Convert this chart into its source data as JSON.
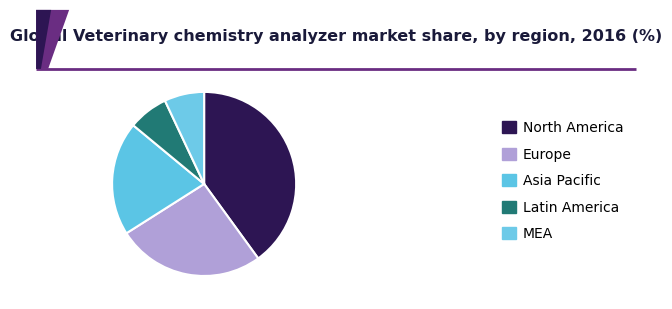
{
  "title": "Global Veterinary chemistry analyzer market share, by region, 2016 (%)",
  "labels": [
    "North America",
    "Europe",
    "Asia Pacific",
    "Latin America",
    "MEA"
  ],
  "values": [
    40,
    26,
    20,
    7,
    7
  ],
  "colors": [
    "#2d1553",
    "#b0a0d8",
    "#5bc5e5",
    "#217a75",
    "#6dcae8"
  ],
  "startangle": 90,
  "title_fontsize": 11.5,
  "legend_fontsize": 10,
  "bg_color": "#ffffff",
  "header_line_color": "#6a2d82",
  "header_accent_color": "#4a1a6e",
  "title_color": "#1a1a3a"
}
